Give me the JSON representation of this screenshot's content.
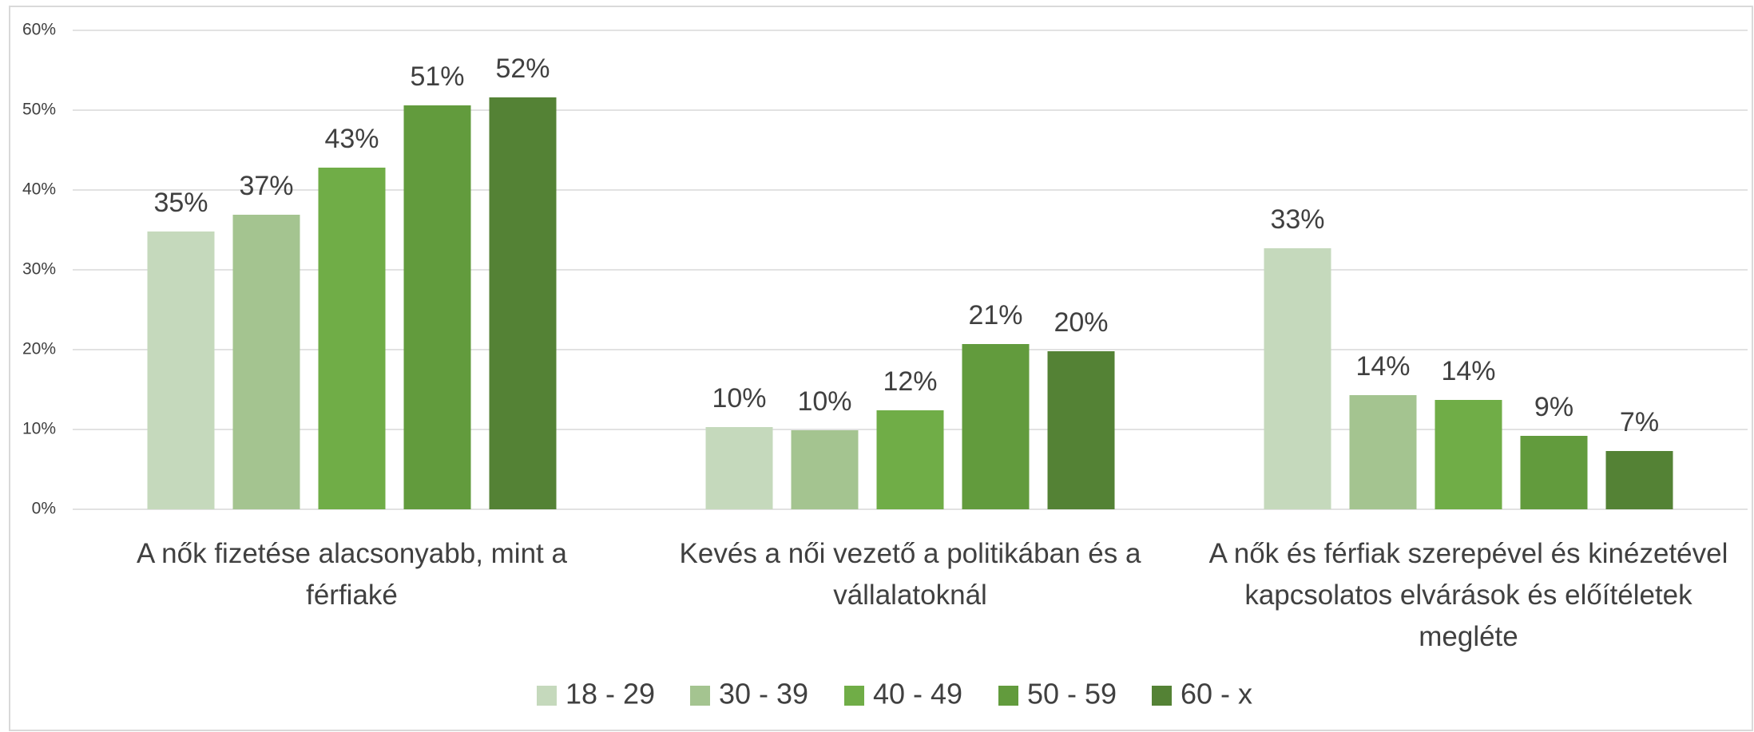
{
  "chart_data": {
    "type": "bar",
    "categories": [
      "A nők fizetése alacsonyabb, mint a férfiaké",
      "Kevés a női vezető a politikában és a vállalatoknál",
      "A nők és férfiak szerepével és kinézetével kapcsolatos elvárások és előítéletek megléte"
    ],
    "series": [
      {
        "name": "18 - 29",
        "color": "#c5d9bc",
        "values": [
          34.8,
          10.3,
          32.7
        ],
        "value_labels": [
          "35%",
          "10%",
          "33%"
        ]
      },
      {
        "name": "30 - 39",
        "color": "#a4c490",
        "values": [
          36.9,
          9.9,
          14.3
        ],
        "value_labels": [
          "37%",
          "10%",
          "14%"
        ]
      },
      {
        "name": "40 - 49",
        "color": "#70ad47",
        "values": [
          42.8,
          12.4,
          13.7
        ],
        "value_labels": [
          "43%",
          "12%",
          "14%"
        ]
      },
      {
        "name": "50 - 59",
        "color": "#629b3d",
        "values": [
          50.6,
          20.7,
          9.2
        ],
        "value_labels": [
          "51%",
          "21%",
          "9%"
        ]
      },
      {
        "name": "60 - x",
        "color": "#548235",
        "values": [
          51.6,
          19.8,
          7.3
        ],
        "value_labels": [
          "52%",
          "20%",
          "7%"
        ]
      }
    ],
    "ylim": [
      0,
      60
    ],
    "yticks": [
      {
        "value": 0,
        "label": "0%"
      },
      {
        "value": 10,
        "label": "10%"
      },
      {
        "value": 20,
        "label": "20%"
      },
      {
        "value": 30,
        "label": "30%"
      },
      {
        "value": 40,
        "label": "40%"
      },
      {
        "value": 50,
        "label": "50%"
      },
      {
        "value": 60,
        "label": "60%"
      }
    ],
    "grid": true,
    "legend": "bottom"
  }
}
